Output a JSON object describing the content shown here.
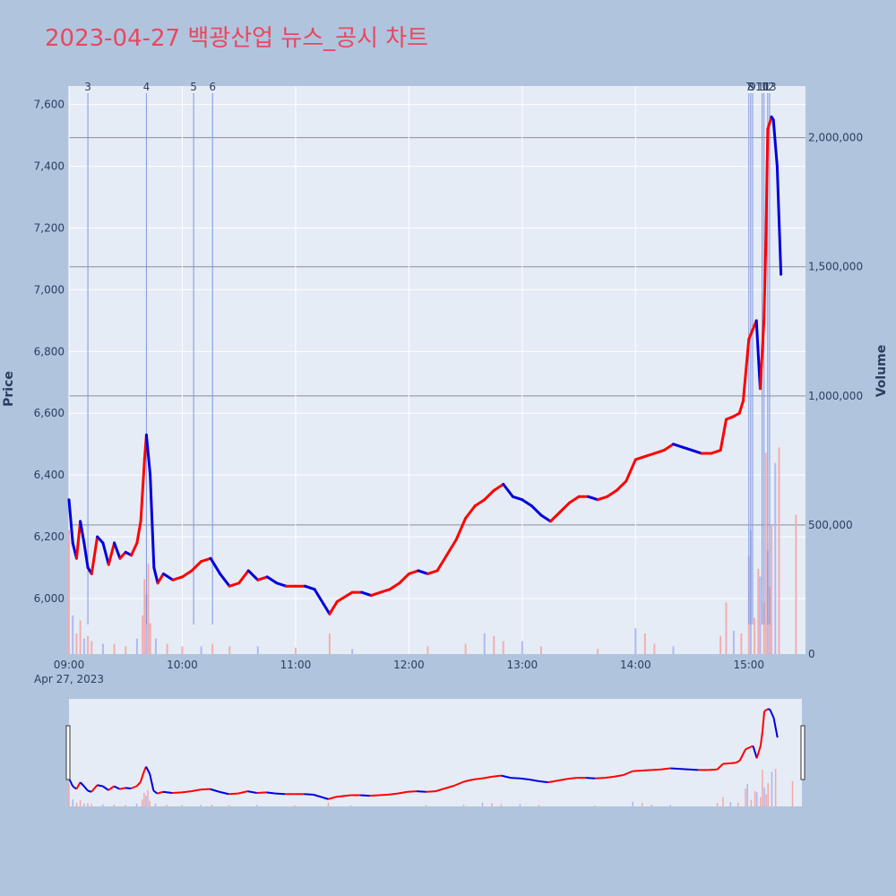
{
  "title": "2023-04-27 백광산업 뉴스_공시 차트",
  "colors": {
    "up": "#ff0000",
    "down": "#0000dd",
    "title": "#e8485f",
    "background": "#b0c4de",
    "plot_bg": "#e5ecf6",
    "news_line": "#7f97e0"
  },
  "chart_data": {
    "type": "candlestick",
    "title": "2023-04-27 백광산업 뉴스_공시 차트",
    "date_label": "Apr 27, 2023",
    "x_ticks": [
      "09:00",
      "10:00",
      "11:00",
      "12:00",
      "13:00",
      "14:00",
      "15:00"
    ],
    "y_left": {
      "label": "Price",
      "range": [
        5820,
        7660
      ],
      "ticks": [
        "6,000",
        "6,200",
        "6,400",
        "6,600",
        "6,800",
        "7,000",
        "7,200",
        "7,400",
        "7,600"
      ],
      "tick_values": [
        6000,
        6200,
        6400,
        6600,
        6800,
        7000,
        7200,
        7400,
        7600
      ]
    },
    "y_right": {
      "label": "Volume",
      "range": [
        0,
        2200000
      ],
      "ticks": [
        "0",
        "500,000",
        "1,000,000",
        "1,500,000",
        "2,000,000"
      ],
      "tick_values": [
        0,
        500000,
        1000000,
        1500000,
        2000000
      ]
    },
    "news_markers": [
      {
        "label": "3",
        "time": "09:10"
      },
      {
        "label": "4",
        "time": "09:41"
      },
      {
        "label": "5",
        "time": "10:06"
      },
      {
        "label": "6",
        "time": "10:16"
      },
      {
        "label": "7",
        "time": "15:00"
      },
      {
        "label": "8",
        "time": "15:01"
      },
      {
        "label": "9",
        "time": "15:02"
      },
      {
        "label": "10",
        "time": "15:07"
      },
      {
        "label": "11",
        "time": "15:08"
      },
      {
        "label": "12",
        "time": "15:10"
      },
      {
        "label": "13",
        "time": "15:11"
      }
    ],
    "price_path": [
      [
        "09:00",
        6320
      ],
      [
        "09:02",
        6180
      ],
      [
        "09:04",
        6130
      ],
      [
        "09:06",
        6250
      ],
      [
        "09:08",
        6180
      ],
      [
        "09:10",
        6100
      ],
      [
        "09:12",
        6080
      ],
      [
        "09:15",
        6200
      ],
      [
        "09:18",
        6180
      ],
      [
        "09:21",
        6110
      ],
      [
        "09:24",
        6180
      ],
      [
        "09:27",
        6130
      ],
      [
        "09:30",
        6150
      ],
      [
        "09:33",
        6140
      ],
      [
        "09:36",
        6180
      ],
      [
        "09:38",
        6250
      ],
      [
        "09:40",
        6450
      ],
      [
        "09:41",
        6530
      ],
      [
        "09:43",
        6400
      ],
      [
        "09:45",
        6100
      ],
      [
        "09:47",
        6050
      ],
      [
        "09:50",
        6080
      ],
      [
        "09:55",
        6060
      ],
      [
        "10:00",
        6070
      ],
      [
        "10:05",
        6090
      ],
      [
        "10:10",
        6120
      ],
      [
        "10:15",
        6130
      ],
      [
        "10:20",
        6080
      ],
      [
        "10:25",
        6040
      ],
      [
        "10:30",
        6050
      ],
      [
        "10:35",
        6090
      ],
      [
        "10:40",
        6060
      ],
      [
        "10:45",
        6070
      ],
      [
        "10:50",
        6050
      ],
      [
        "10:55",
        6040
      ],
      [
        "11:00",
        6040
      ],
      [
        "11:05",
        6040
      ],
      [
        "11:10",
        6030
      ],
      [
        "11:15",
        5980
      ],
      [
        "11:18",
        5950
      ],
      [
        "11:22",
        5990
      ],
      [
        "11:30",
        6020
      ],
      [
        "11:35",
        6020
      ],
      [
        "11:40",
        6010
      ],
      [
        "11:45",
        6020
      ],
      [
        "11:50",
        6030
      ],
      [
        "11:55",
        6050
      ],
      [
        "12:00",
        6080
      ],
      [
        "12:05",
        6090
      ],
      [
        "12:10",
        6080
      ],
      [
        "12:15",
        6090
      ],
      [
        "12:20",
        6140
      ],
      [
        "12:25",
        6190
      ],
      [
        "12:30",
        6260
      ],
      [
        "12:35",
        6300
      ],
      [
        "12:40",
        6320
      ],
      [
        "12:45",
        6350
      ],
      [
        "12:50",
        6370
      ],
      [
        "12:55",
        6330
      ],
      [
        "13:00",
        6320
      ],
      [
        "13:05",
        6300
      ],
      [
        "13:10",
        6270
      ],
      [
        "13:15",
        6250
      ],
      [
        "13:20",
        6280
      ],
      [
        "13:25",
        6310
      ],
      [
        "13:30",
        6330
      ],
      [
        "13:35",
        6330
      ],
      [
        "13:40",
        6320
      ],
      [
        "13:45",
        6330
      ],
      [
        "13:50",
        6350
      ],
      [
        "13:55",
        6380
      ],
      [
        "14:00",
        6450
      ],
      [
        "14:05",
        6460
      ],
      [
        "14:10",
        6470
      ],
      [
        "14:15",
        6480
      ],
      [
        "14:20",
        6500
      ],
      [
        "14:25",
        6490
      ],
      [
        "14:30",
        6480
      ],
      [
        "14:35",
        6470
      ],
      [
        "14:40",
        6470
      ],
      [
        "14:45",
        6480
      ],
      [
        "14:48",
        6580
      ],
      [
        "14:52",
        6590
      ],
      [
        "14:55",
        6600
      ],
      [
        "14:57",
        6640
      ],
      [
        "15:00",
        6840
      ],
      [
        "15:02",
        6870
      ],
      [
        "15:04",
        6900
      ],
      [
        "15:06",
        6680
      ],
      [
        "15:08",
        6900
      ],
      [
        "15:09",
        7150
      ],
      [
        "15:10",
        7520
      ],
      [
        "15:12",
        7560
      ],
      [
        "15:13",
        7550
      ],
      [
        "15:15",
        7400
      ],
      [
        "15:17",
        7050
      ]
    ],
    "volume_bars": [
      [
        "09:00",
        480000
      ],
      [
        "09:02",
        150000
      ],
      [
        "09:04",
        80000
      ],
      [
        "09:06",
        130000
      ],
      [
        "09:08",
        60000
      ],
      [
        "09:10",
        70000
      ],
      [
        "09:12",
        50000
      ],
      [
        "09:18",
        40000
      ],
      [
        "09:24",
        40000
      ],
      [
        "09:30",
        30000
      ],
      [
        "09:36",
        60000
      ],
      [
        "09:39",
        150000
      ],
      [
        "09:40",
        290000
      ],
      [
        "09:41",
        230000
      ],
      [
        "09:42",
        350000
      ],
      [
        "09:43",
        120000
      ],
      [
        "09:46",
        60000
      ],
      [
        "09:52",
        40000
      ],
      [
        "10:00",
        30000
      ],
      [
        "10:10",
        30000
      ],
      [
        "10:16",
        40000
      ],
      [
        "10:25",
        30000
      ],
      [
        "10:40",
        30000
      ],
      [
        "11:00",
        25000
      ],
      [
        "11:18",
        80000
      ],
      [
        "11:30",
        20000
      ],
      [
        "12:10",
        30000
      ],
      [
        "12:30",
        40000
      ],
      [
        "12:40",
        80000
      ],
      [
        "12:45",
        70000
      ],
      [
        "12:50",
        50000
      ],
      [
        "13:00",
        50000
      ],
      [
        "13:10",
        30000
      ],
      [
        "13:40",
        20000
      ],
      [
        "14:00",
        100000
      ],
      [
        "14:05",
        80000
      ],
      [
        "14:10",
        40000
      ],
      [
        "14:20",
        30000
      ],
      [
        "14:45",
        70000
      ],
      [
        "14:48",
        200000
      ],
      [
        "14:52",
        90000
      ],
      [
        "14:56",
        80000
      ],
      [
        "15:00",
        380000
      ],
      [
        "15:01",
        480000
      ],
      [
        "15:03",
        140000
      ],
      [
        "15:05",
        330000
      ],
      [
        "15:06",
        300000
      ],
      [
        "15:08",
        200000
      ],
      [
        "15:09",
        780000
      ],
      [
        "15:10",
        400000
      ],
      [
        "15:11",
        260000
      ],
      [
        "15:12",
        500000
      ],
      [
        "15:14",
        740000
      ],
      [
        "15:16",
        800000
      ],
      [
        "15:25",
        540000
      ]
    ]
  }
}
